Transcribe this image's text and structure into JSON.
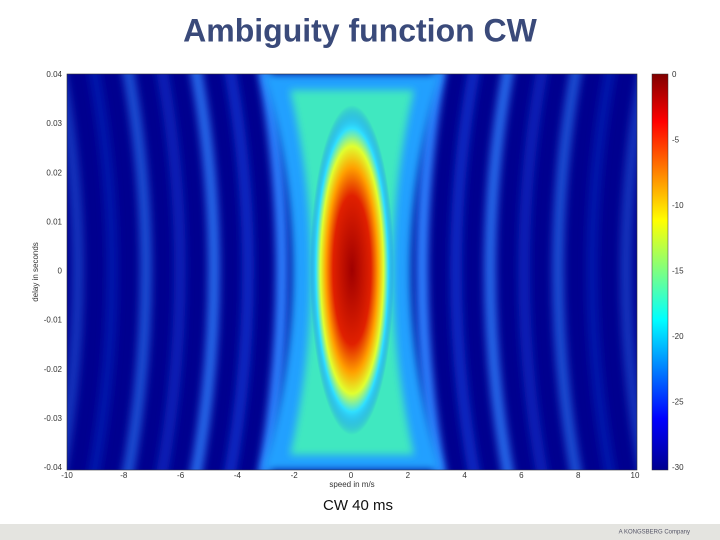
{
  "slide": {
    "title": "Ambiguity function CW",
    "caption": "CW 40 ms",
    "footer": "A KONGSBERG Company",
    "plot": {
      "y_label": "delay in seconds",
      "x_label": "speed in m/s",
      "y_ticks": [
        "0.04",
        "0.03",
        "0.02",
        "0.01",
        "0",
        "-0.01",
        "-0.02",
        "-0.03",
        "-0.04"
      ],
      "x_ticks": [
        "-10",
        "-8",
        "-6",
        "-4",
        "-2",
        "0",
        "2",
        "4",
        "6",
        "8",
        "10"
      ],
      "colorbar_ticks": [
        "0",
        "-5",
        "-10",
        "-15",
        "-20",
        "-25",
        "-30"
      ]
    }
  }
}
